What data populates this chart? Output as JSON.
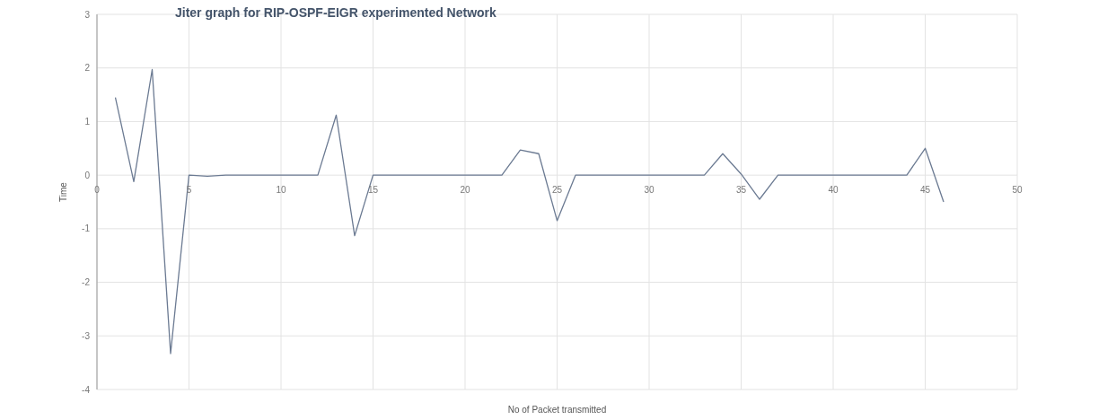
{
  "chart_data": {
    "type": "line",
    "title": "Jiter graph for RIP-OSPF-EIGR experimented Network",
    "xlabel": "No of Packet transmitted",
    "ylabel": "Time",
    "x": [
      1,
      2,
      3,
      4,
      5,
      6,
      7,
      8,
      9,
      10,
      11,
      12,
      13,
      14,
      15,
      16,
      17,
      18,
      19,
      20,
      21,
      22,
      23,
      24,
      25,
      26,
      27,
      28,
      29,
      30,
      31,
      32,
      33,
      34,
      35,
      36,
      37,
      38,
      39,
      40,
      41,
      42,
      43,
      44,
      45,
      46
    ],
    "series": [
      {
        "color": "#6b7a92",
        "values": [
          1.45,
          -0.12,
          1.97,
          -3.33,
          0,
          -0.02,
          0,
          0,
          0,
          0,
          0,
          0,
          1.12,
          -1.13,
          0,
          0,
          0,
          0,
          0,
          0,
          0,
          0,
          0.47,
          0.4,
          -0.85,
          0,
          0,
          0,
          0,
          0,
          0,
          0,
          0,
          0.4,
          0.02,
          -0.45,
          0,
          0,
          0,
          0,
          0,
          0,
          0,
          0,
          0.5,
          -0.5
        ]
      }
    ],
    "xlim": [
      0,
      50
    ],
    "xticks": [
      0,
      5,
      10,
      15,
      20,
      25,
      30,
      35,
      40,
      45,
      50
    ],
    "ylim": [
      -4,
      3
    ],
    "yticks": [
      -4,
      -3,
      -2,
      -1,
      0,
      1,
      2,
      3
    ],
    "grid": true,
    "marker": "none",
    "line_style": "solid"
  }
}
